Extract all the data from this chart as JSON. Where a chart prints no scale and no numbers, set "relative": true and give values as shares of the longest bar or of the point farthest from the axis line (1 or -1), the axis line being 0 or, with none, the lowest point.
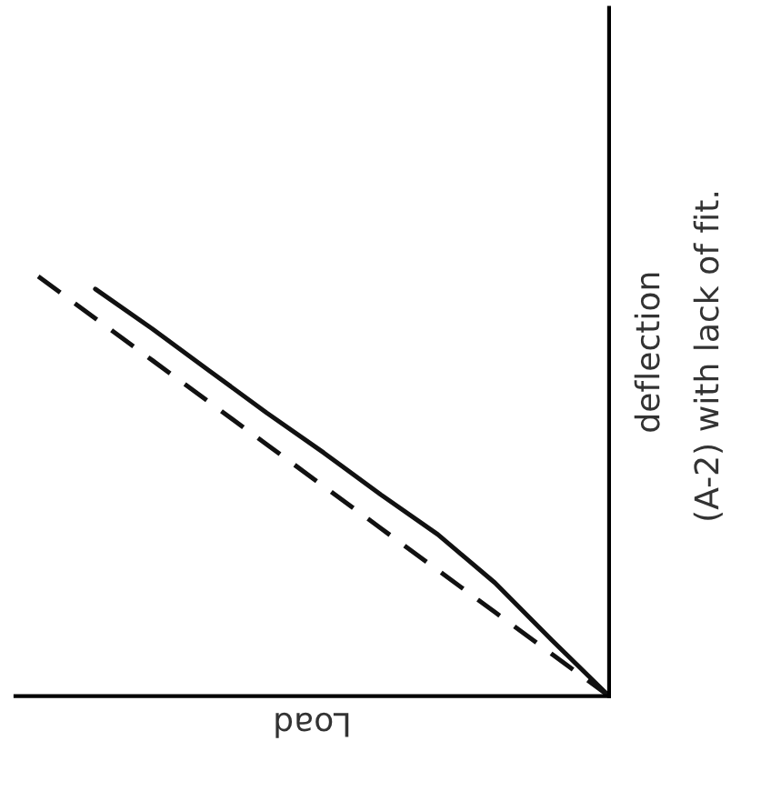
{
  "chart_data": {
    "type": "line",
    "relative": true,
    "xlabel": "Load",
    "ylabel": "deflection",
    "annotations": [
      "(A-2) with lack of fit."
    ],
    "categories": [
      null,
      null,
      null,
      null,
      null,
      null,
      null,
      null,
      null,
      null,
      null
    ],
    "series": [
      {
        "color": "#111111",
        "line_style": "solid",
        "values": [
          null,
          0.97,
          0.875,
          0.775,
          0.675,
          0.58,
          0.48,
          0.385,
          0.27,
          0.133,
          0
        ]
      },
      {
        "color": "#111111",
        "line_style": "dashed",
        "values": [
          1.0,
          0.9,
          0.8,
          0.7,
          0.6,
          0.5,
          0.4,
          0.3,
          0.2,
          0.1,
          0
        ]
      }
    ]
  }
}
